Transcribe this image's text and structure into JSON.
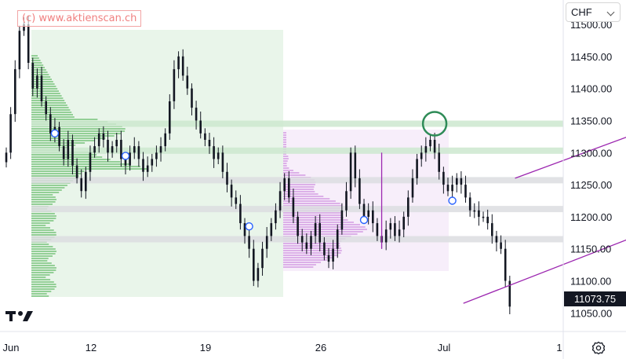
{
  "watermark": "(c) www.aktienscan.ch",
  "currency_selector": {
    "label": "CHF"
  },
  "last_price": "11073.75",
  "colors": {
    "candle": "#131722",
    "volume_profile_green": "#4caf50",
    "volume_profile_purple": "#c77dd8",
    "channel": "#9c27b0",
    "highlight_circle": "#2e8b57",
    "marker_blue": "#2962ff",
    "band_green": "#cde8cf",
    "band_gray": "#dcdde0"
  },
  "icons": [
    "tradingview-logo-icon",
    "settings-gear-icon",
    "chevron-down-icon"
  ],
  "chart_data": {
    "type": "candlestick",
    "title": "",
    "xlabel": "",
    "ylabel": "",
    "ylim": [
      11025,
      11525
    ],
    "y_ticks": [
      "11500.00",
      "11450.00",
      "11400.00",
      "11350.00",
      "11300.00",
      "11250.00",
      "11200.00",
      "11150.00",
      "11100.00",
      "11050.00"
    ],
    "x_ticks": [
      "Jun",
      "12",
      "19",
      "26",
      "Jul",
      "1"
    ],
    "close_series": [
      11300,
      11360,
      11430,
      11490,
      11500,
      11440,
      11400,
      11420,
      11380,
      11360,
      11330,
      11340,
      11310,
      11290,
      11320,
      11280,
      11260,
      11240,
      11270,
      11300,
      11310,
      11330,
      11320,
      11300,
      11310,
      11320,
      11290,
      11280,
      11300,
      11310,
      11290,
      11270,
      11280,
      11290,
      11300,
      11310,
      11330,
      11380,
      11430,
      11450,
      11420,
      11400,
      11370,
      11350,
      11330,
      11320,
      11310,
      11290,
      11300,
      11270,
      11250,
      11230,
      11220,
      11190,
      11170,
      11150,
      11100,
      11120,
      11150,
      11170,
      11190,
      11210,
      11240,
      11260,
      11230,
      11200,
      11170,
      11160,
      11150,
      11170,
      11190,
      11160,
      11140,
      11130,
      11150,
      11180,
      11210,
      11240,
      11300,
      11260,
      11220,
      11200,
      11210,
      11190,
      11170,
      11160,
      11180,
      11190,
      11170,
      11180,
      11200,
      11230,
      11260,
      11290,
      11300,
      11310,
      11320,
      11300,
      11270,
      11250,
      11240,
      11250,
      11260,
      11250,
      11230,
      11210,
      11210,
      11200,
      11200,
      11190,
      11170,
      11160,
      11150,
      11100,
      11060
    ],
    "last_value": 11073.75,
    "horizontal_bands": [
      {
        "level": 11345,
        "kind": "green"
      },
      {
        "level": 11303,
        "kind": "green"
      },
      {
        "level": 11257,
        "kind": "gray"
      },
      {
        "level": 11212,
        "kind": "gray"
      },
      {
        "level": 11165,
        "kind": "gray"
      }
    ],
    "channel": {
      "lower": [
        [
          23,
          11065
        ],
        [
          34.2,
          11200
        ]
      ],
      "upper": [
        [
          25.6,
          11260
        ],
        [
          35.4,
          11372
        ]
      ]
    },
    "markers": [
      {
        "index": 11,
        "value": 11330
      },
      {
        "index": 27,
        "value": 11295
      },
      {
        "index": 55,
        "value": 11185
      },
      {
        "index": 81,
        "value": 11195
      },
      {
        "index": 101,
        "value": 11225
      }
    ],
    "highlight": {
      "index": 97,
      "value": 11345
    }
  }
}
